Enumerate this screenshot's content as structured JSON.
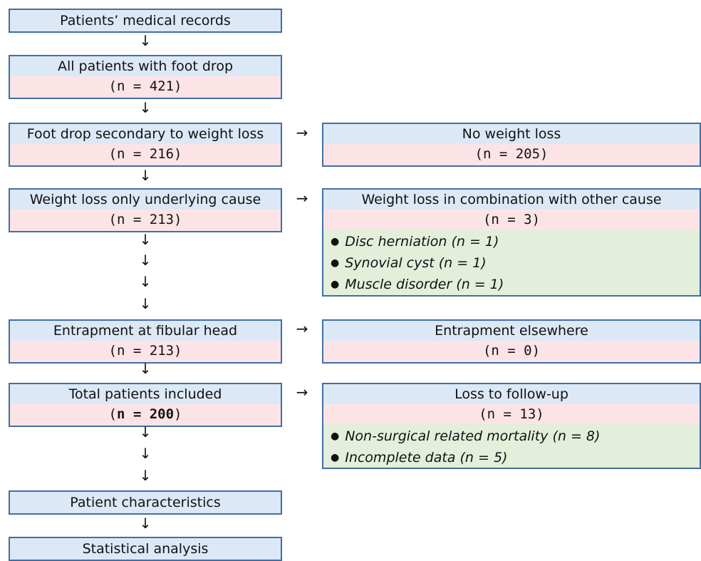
{
  "left_column": {
    "records": {
      "title": "Patients’ medical records"
    },
    "all_patients": {
      "title": "All patients with foot drop",
      "count": "(n = 421)"
    },
    "secondary": {
      "title": "Foot drop secondary to weight loss",
      "count": "(n = 216)"
    },
    "only_cause": {
      "title": "Weight loss only underlying cause",
      "count": "(n = 213)"
    },
    "entrapment": {
      "title": "Entrapment at fibular head",
      "count": "(n = 213)"
    },
    "total": {
      "title": "Total patients included",
      "count_open": "(",
      "count_bold": "n = 200",
      "count_close": ")"
    },
    "characteristics": {
      "title": "Patient characteristics"
    },
    "statistics": {
      "title": "Statistical analysis"
    }
  },
  "right_column": {
    "no_weight_loss": {
      "title": "No weight loss",
      "count": "(n = 205)"
    },
    "combination": {
      "title": "Weight loss in combination with other cause",
      "count": "(n = 3)",
      "items": [
        "Disc herniation (n = 1)",
        "Synovial cyst (n = 1)",
        "Muscle disorder (n = 1)"
      ]
    },
    "elsewhere": {
      "title": "Entrapment elsewhere",
      "count": "(n = 0)"
    },
    "follow_up": {
      "title": "Loss to follow-up",
      "count": "(n = 13)",
      "items": [
        "Non-surgical related mortality (n = 8)",
        "Incomplete data (n = 5)"
      ]
    }
  },
  "symbols": {
    "down_arrow": "↓",
    "right_arrow": "→",
    "bullet": "●"
  },
  "colors": {
    "border": "#3f6fa5",
    "title_fill": "#dce8f5",
    "count_fill": "#fce4e6",
    "list_fill": "#e3efdb"
  }
}
